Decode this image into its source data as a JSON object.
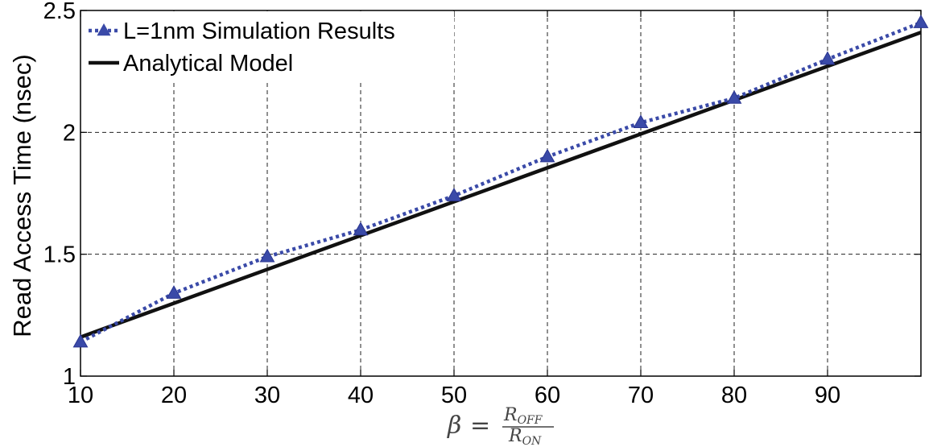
{
  "chart_data": {
    "type": "line",
    "title": "",
    "xlabel": {
      "lhs": "β",
      "eq": "=",
      "numerator_base": "R",
      "numerator_sub": "OFF",
      "denominator_base": "R",
      "denominator_sub": "ON"
    },
    "ylabel": "Read Access Time (nsec)",
    "xlim": [
      10,
      100
    ],
    "ylim": [
      1,
      2.5
    ],
    "xticks": [
      10,
      20,
      30,
      40,
      50,
      60,
      70,
      80,
      90
    ],
    "xtick_labels": [
      "10",
      "20",
      "30",
      "40",
      "50",
      "60",
      "70",
      "80",
      "90"
    ],
    "yticks": [
      1,
      1.5,
      2,
      2.5
    ],
    "ytick_labels": [
      "1",
      "1.5",
      "2",
      "2.5"
    ],
    "grid": true,
    "legend_position": "top-left",
    "series": [
      {
        "name": "L=1nm Simulation Results",
        "style": "dotted-with-triangle-markers",
        "color": "#3a4aa8",
        "x": [
          10,
          20,
          30,
          40,
          50,
          60,
          70,
          80,
          90,
          100
        ],
        "y": [
          1.14,
          1.34,
          1.49,
          1.6,
          1.74,
          1.9,
          2.04,
          2.14,
          2.3,
          2.45
        ]
      },
      {
        "name": "Analytical Model",
        "style": "solid",
        "color": "#111111",
        "x": [
          10,
          100
        ],
        "y": [
          1.16,
          2.41
        ]
      }
    ]
  }
}
